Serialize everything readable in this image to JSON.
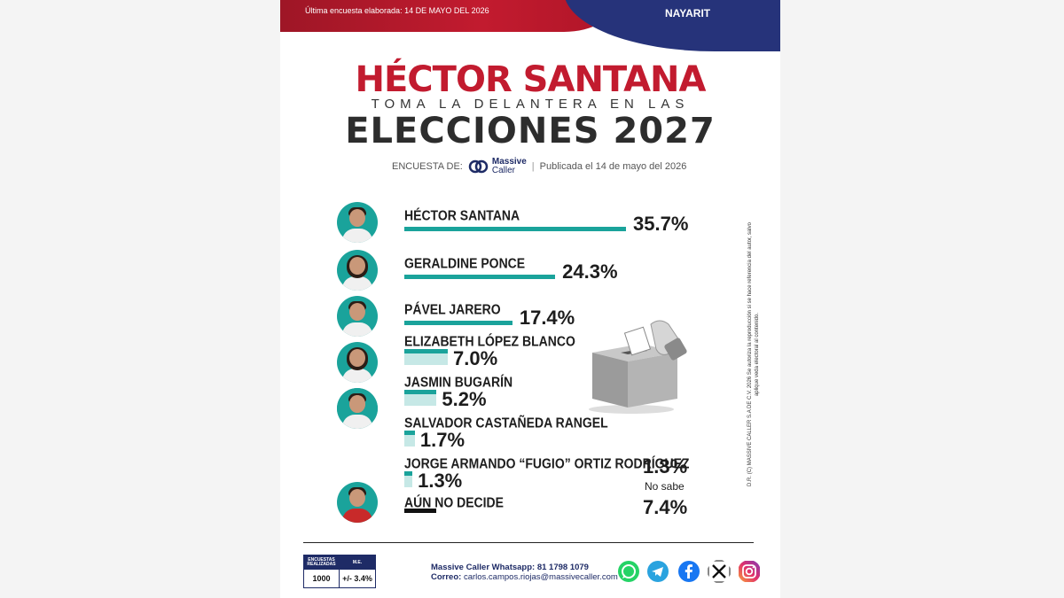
{
  "header": {
    "last_survey": "Última encuesta elaborada: 14 DE MAYO DEL 2026",
    "state": "NAYARIT"
  },
  "title": {
    "line1": "HÉCTOR SANTANA",
    "line2": "TOMA LA DELANTERA EN LAS",
    "line3": "ELECCIONES 2027"
  },
  "byline": {
    "label": "ENCUESTA DE:",
    "brand_line1": "Massive",
    "brand_line2": "Caller",
    "separator": "|",
    "published": "Publicada el 14 de mayo del 2026"
  },
  "chart_data": {
    "type": "bar",
    "orientation": "horizontal",
    "categories": [
      "HÉCTOR SANTANA",
      "GERALDINE PONCE",
      "PÁVEL JARERO",
      "ELIZABETH LÓPEZ BLANCO",
      "JASMIN   BUGARÍN",
      "SALVADOR CASTAÑEDA RANGEL",
      "JORGE ARMANDO “FUGIO” ORTIZ RODRÍGUEZ",
      "AÚN NO DECIDE"
    ],
    "values": [
      35.7,
      24.3,
      17.4,
      7.0,
      5.2,
      1.7,
      1.3,
      7.4
    ],
    "labels": [
      "35.7%",
      "24.3%",
      "17.4%",
      "7.0%",
      "5.2%",
      "1.7%",
      "1.3%",
      "7.4%"
    ],
    "extra": {
      "no_sabe_value": "1.3%",
      "no_sabe_label": "No sabe"
    },
    "colors": {
      "bar": "#1aa39b",
      "undecided_bar": "#111111"
    }
  },
  "disclaimer": "D.R. (C) MASSIVE CALLER S.A DE C.V. 2026 Se autoriza la reproducción si se hace referencia del autor, salvo aplique veda electoral al contenido.",
  "footer": {
    "table_header": [
      "ENCUESTAS REALIZADAS",
      "M.E."
    ],
    "table_values": [
      "1000",
      "+/- 3.4%"
    ],
    "whatsapp": "Massive Caller Whatsapp: 81 1798 1079",
    "email_label": "Correo:",
    "email": "carlos.campos.riojas@massivecaller.com"
  },
  "social_icons": [
    "whatsapp-icon",
    "telegram-icon",
    "facebook-icon",
    "x-icon",
    "instagram-icon"
  ],
  "colors": {
    "brand_red": "#c21b2f",
    "brand_blue": "#26337a",
    "teal": "#1aa39b"
  }
}
